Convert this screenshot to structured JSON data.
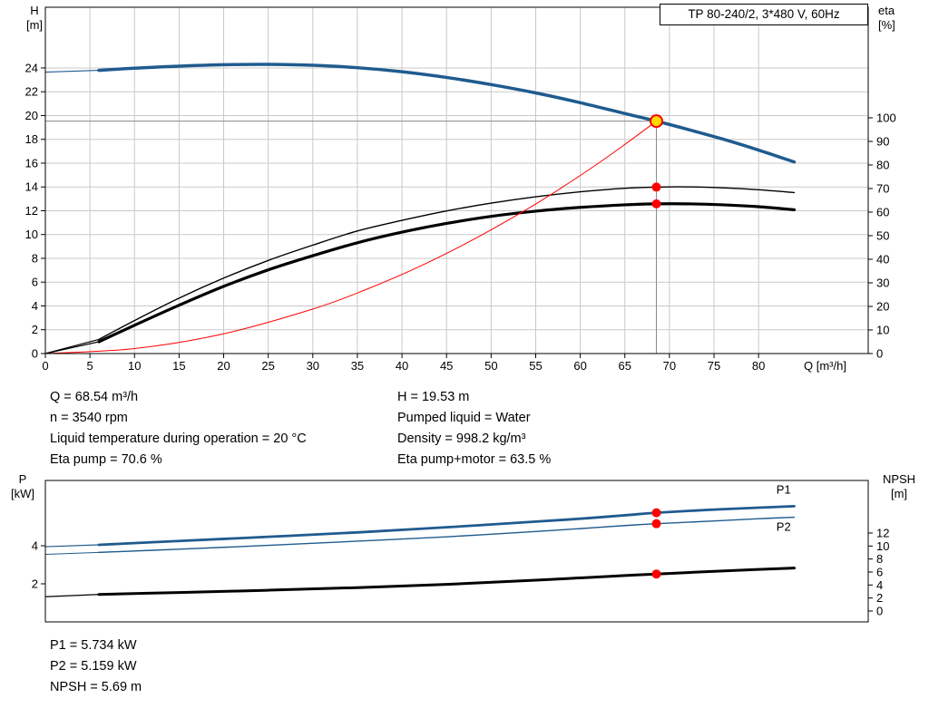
{
  "labels": {
    "h": "H",
    "h_unit": "[m]",
    "eta": "eta",
    "eta_unit": "[%]",
    "q": "Q [m³/h]",
    "p": "P",
    "p_unit": "[kW]",
    "npsh": "NPSH",
    "npsh_unit": "[m]"
  },
  "info": {
    "left": [
      "Q = 68.54 m³/h",
      "n = 3540 rpm",
      "Liquid temperature during operation = 20 °C",
      "Eta pump = 70.6 %"
    ],
    "right": [
      "H = 19.53 m",
      "Pumped liquid = Water",
      "Density = 998.2 kg/m³",
      "Eta pump+motor = 63.5 %"
    ]
  },
  "footer": [
    "P1 = 5.734 kW",
    "P2 = 5.159 kW",
    "NPSH = 5.69 m"
  ],
  "chart_data": [
    {
      "type": "line",
      "name": "hq-eta-chart",
      "title": "TP 80-240/2, 3*480 V, 60Hz",
      "xlabel": "Q [m³/h]",
      "ylabel_left": "H [m]",
      "ylabel_right": "eta [%]",
      "x_axis": {
        "min": 0,
        "max": 92.3,
        "ticks": [
          0,
          5,
          10,
          15,
          20,
          25,
          30,
          35,
          40,
          45,
          50,
          55,
          60,
          65,
          70,
          75,
          80
        ]
      },
      "left_axis": {
        "min": 0,
        "max": 29.1,
        "ticks": [
          0,
          2,
          4,
          6,
          8,
          10,
          12,
          14,
          16,
          18,
          20,
          22,
          24
        ]
      },
      "right_axis": {
        "min": 0,
        "max": 146.9,
        "ticks": [
          0,
          10,
          20,
          30,
          40,
          50,
          60,
          70,
          80,
          90,
          100
        ]
      },
      "grid": {
        "vertical": [
          5,
          10,
          15,
          20,
          25,
          30,
          35,
          40,
          45,
          50,
          55,
          60,
          65,
          70,
          75,
          80
        ],
        "horizontal": [
          2,
          4,
          6,
          8,
          10,
          12,
          14,
          16,
          18,
          20,
          22,
          24
        ]
      },
      "crosshair": {
        "x": 68.54,
        "y": 19.53,
        "color": "#8a8a8a"
      },
      "series": [
        {
          "name": "head-curve-lead",
          "axis": "left",
          "color": "#1f5b8e",
          "width": 1.2,
          "points": [
            [
              0,
              23.65
            ],
            [
              6,
              23.8
            ]
          ]
        },
        {
          "name": "head-curve",
          "axis": "left",
          "color": "#1f5b8e",
          "width": 3.5,
          "points": [
            [
              6,
              23.8
            ],
            [
              10,
              23.98
            ],
            [
              15,
              24.15
            ],
            [
              20,
              24.27
            ],
            [
              25,
              24.3
            ],
            [
              30,
              24.22
            ],
            [
              35,
              24.02
            ],
            [
              40,
              23.68
            ],
            [
              45,
              23.2
            ],
            [
              50,
              22.6
            ],
            [
              55,
              21.9
            ],
            [
              60,
              21.08
            ],
            [
              65,
              20.17
            ],
            [
              68.54,
              19.53
            ],
            [
              72,
              18.85
            ],
            [
              76,
              18.02
            ],
            [
              80,
              17.1
            ],
            [
              84,
              16.1
            ]
          ]
        },
        {
          "name": "eta-pump-curve-lead",
          "axis": "right",
          "color": "#000000",
          "width": 1.2,
          "points": [
            [
              0,
              0
            ],
            [
              6,
              6
            ]
          ]
        },
        {
          "name": "eta-pump-curve",
          "axis": "right",
          "color": "#000000",
          "width": 1.4,
          "points": [
            [
              6,
              6
            ],
            [
              10,
              14
            ],
            [
              15,
              23.5
            ],
            [
              20,
              32
            ],
            [
              25,
              39.5
            ],
            [
              30,
              46
            ],
            [
              35,
              52
            ],
            [
              40,
              56.5
            ],
            [
              45,
              60.5
            ],
            [
              50,
              63.8
            ],
            [
              55,
              66.5
            ],
            [
              60,
              68.6
            ],
            [
              65,
              70.1
            ],
            [
              68.54,
              70.6
            ],
            [
              72,
              70.7
            ],
            [
              76,
              70.3
            ],
            [
              80,
              69.5
            ],
            [
              84,
              68.3
            ]
          ]
        },
        {
          "name": "eta-pump-motor-curve-lead",
          "axis": "right",
          "color": "#000000",
          "width": 1.2,
          "points": [
            [
              0,
              0
            ],
            [
              6,
              5
            ]
          ]
        },
        {
          "name": "eta-pump-motor-curve",
          "axis": "right",
          "color": "#000000",
          "width": 3.2,
          "points": [
            [
              6,
              5
            ],
            [
              10,
              12
            ],
            [
              15,
              20.5
            ],
            [
              20,
              28.5
            ],
            [
              25,
              35.5
            ],
            [
              30,
              41.5
            ],
            [
              35,
              47
            ],
            [
              40,
              51.5
            ],
            [
              45,
              55.2
            ],
            [
              50,
              58.2
            ],
            [
              55,
              60.4
            ],
            [
              60,
              62
            ],
            [
              65,
              63.1
            ],
            [
              68.54,
              63.5
            ],
            [
              72,
              63.5
            ],
            [
              76,
              63.1
            ],
            [
              80,
              62.3
            ],
            [
              84,
              61
            ]
          ]
        },
        {
          "name": "system-curve",
          "axis": "left",
          "color": "#ff0000",
          "width": 1,
          "points": [
            [
              0,
              0
            ],
            [
              10,
              0.42
            ],
            [
              20,
              1.66
            ],
            [
              30,
              3.74
            ],
            [
              36,
              5.39
            ],
            [
              42,
              7.33
            ],
            [
              48,
              9.58
            ],
            [
              54,
              12.12
            ],
            [
              58,
              13.98
            ],
            [
              62,
              15.98
            ],
            [
              65,
              17.57
            ],
            [
              68.54,
              19.53
            ]
          ]
        }
      ],
      "markers": [
        {
          "name": "eta-pump-point",
          "x": 68.54,
          "y": 70.6,
          "axis": "right",
          "r": 5,
          "fill": "#ff0000"
        },
        {
          "name": "eta-pump-motor-point",
          "x": 68.54,
          "y": 63.5,
          "axis": "right",
          "r": 5,
          "fill": "#ff0000"
        },
        {
          "name": "duty-point",
          "x": 68.54,
          "y": 19.53,
          "axis": "left",
          "r": 6.5,
          "fill": "#ffd800",
          "stroke": "#ff0000",
          "stroke_width": 2
        }
      ],
      "annotations": []
    },
    {
      "type": "line",
      "name": "power-npsh-chart",
      "title": "",
      "xlabel": "",
      "ylabel_left": "P [kW]",
      "ylabel_right": "NPSH [m]",
      "x_axis": {
        "min": 0,
        "max": 92.3,
        "ticks": []
      },
      "left_axis": {
        "min": 0,
        "max": 7.43,
        "ticks": [
          2,
          4
        ]
      },
      "right_axis": {
        "min": -1.67,
        "max": 20.08,
        "ticks": [
          0,
          2,
          4,
          6,
          8,
          10,
          12
        ]
      },
      "grid": {
        "vertical": [],
        "horizontal": []
      },
      "series": [
        {
          "name": "p1-curve-lead",
          "axis": "left",
          "color": "#1f5b8e",
          "width": 1.2,
          "points": [
            [
              0,
              3.95
            ],
            [
              6,
              4.05
            ]
          ]
        },
        {
          "name": "p1-curve",
          "axis": "left",
          "color": "#1f5b8e",
          "width": 2.8,
          "points": [
            [
              6,
              4.05
            ],
            [
              15,
              4.25
            ],
            [
              25,
              4.47
            ],
            [
              35,
              4.7
            ],
            [
              45,
              4.97
            ],
            [
              55,
              5.27
            ],
            [
              60,
              5.42
            ],
            [
              65,
              5.6
            ],
            [
              68.54,
              5.734
            ],
            [
              75,
              5.9
            ],
            [
              80,
              6.0
            ],
            [
              84,
              6.08
            ]
          ]
        },
        {
          "name": "p2-curve-lead",
          "axis": "left",
          "color": "#1f5b8e",
          "width": 1,
          "points": [
            [
              0,
              3.55
            ],
            [
              6,
              3.65
            ]
          ]
        },
        {
          "name": "p2-curve",
          "axis": "left",
          "color": "#1f5b8e",
          "width": 1.4,
          "points": [
            [
              6,
              3.65
            ],
            [
              15,
              3.82
            ],
            [
              25,
              4.02
            ],
            [
              35,
              4.24
            ],
            [
              45,
              4.47
            ],
            [
              55,
              4.75
            ],
            [
              60,
              4.9
            ],
            [
              65,
              5.06
            ],
            [
              68.54,
              5.159
            ],
            [
              75,
              5.3
            ],
            [
              80,
              5.42
            ],
            [
              84,
              5.5
            ]
          ]
        },
        {
          "name": "npsh-curve-lead",
          "axis": "right",
          "color": "#000000",
          "width": 1.2,
          "points": [
            [
              0,
              2.2
            ],
            [
              6,
              2.55
            ]
          ]
        },
        {
          "name": "npsh-curve",
          "axis": "right",
          "color": "#000000",
          "width": 3,
          "points": [
            [
              6,
              2.55
            ],
            [
              15,
              2.85
            ],
            [
              25,
              3.2
            ],
            [
              35,
              3.6
            ],
            [
              45,
              4.1
            ],
            [
              55,
              4.75
            ],
            [
              60,
              5.1
            ],
            [
              65,
              5.45
            ],
            [
              68.54,
              5.69
            ],
            [
              75,
              6.1
            ],
            [
              80,
              6.4
            ],
            [
              84,
              6.6
            ]
          ]
        }
      ],
      "markers": [
        {
          "name": "p1-point",
          "x": 68.54,
          "y": 5.734,
          "axis": "left",
          "r": 5,
          "fill": "#ff0000"
        },
        {
          "name": "p2-point",
          "x": 68.54,
          "y": 5.159,
          "axis": "left",
          "r": 5,
          "fill": "#ff0000"
        },
        {
          "name": "npsh-point",
          "x": 68.54,
          "y": 5.69,
          "axis": "right",
          "r": 5,
          "fill": "#ff0000"
        }
      ],
      "annotations": [
        {
          "text": "P1",
          "x": 82,
          "y": 6.75,
          "axis": "left",
          "color": "#1f5b8e"
        },
        {
          "text": "P2",
          "x": 82,
          "y": 4.78,
          "axis": "left",
          "color": "#1f5b8e"
        }
      ]
    }
  ]
}
